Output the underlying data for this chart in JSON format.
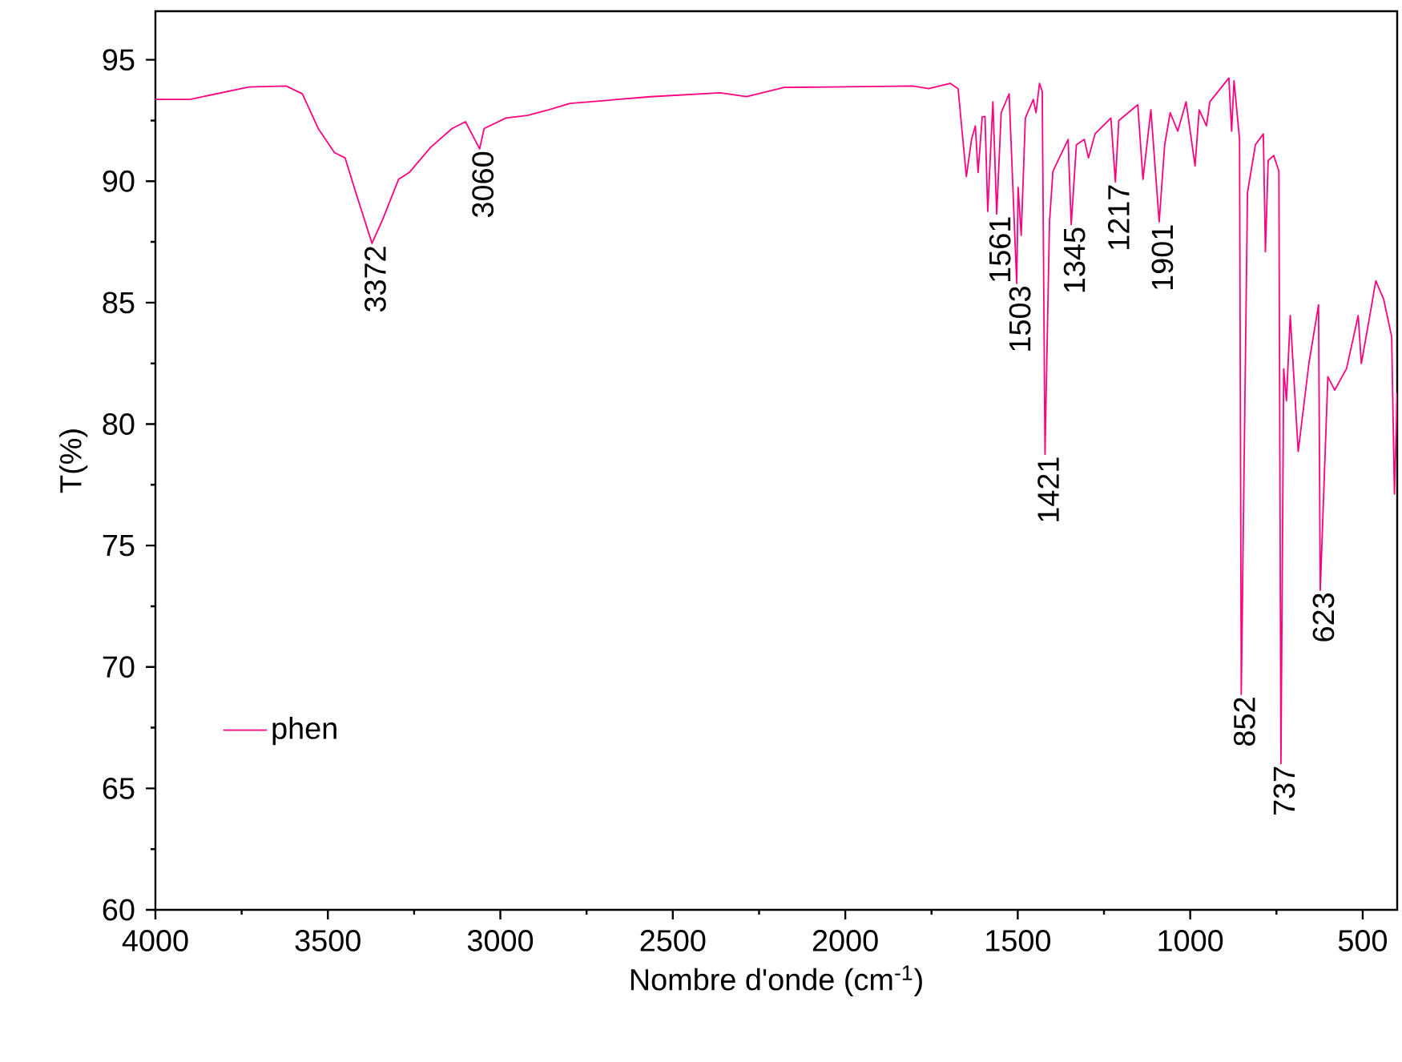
{
  "chart_data": {
    "type": "line",
    "xlabel": "Nombre d'onde (cm$^{-1}$)",
    "ylabel": "T(%)",
    "xlim": [
      4000,
      400
    ],
    "xticks": [
      4000,
      3500,
      3000,
      2500,
      2000,
      1500,
      1000,
      500
    ],
    "ylim": [
      60,
      97
    ],
    "yticks": [
      60,
      65,
      70,
      75,
      80,
      85,
      90,
      95
    ],
    "legend": "bottom left",
    "series": [
      {
        "name": "phen",
        "color": "#ff0080",
        "x": [
          4000,
          3900,
          3729,
          3621,
          3574,
          3528,
          3481,
          3450,
          3419,
          3372,
          3341,
          3295,
          3264,
          3202,
          3140,
          3101,
          3060,
          3047,
          2984,
          2922,
          2860,
          2798,
          2565,
          2363,
          2286,
          2177,
          1804,
          1758,
          1696,
          1673,
          1649,
          1634,
          1623,
          1615,
          1603,
          1595,
          1587,
          1572,
          1561,
          1548,
          1525,
          1503,
          1499,
          1490,
          1478,
          1455,
          1447,
          1437,
          1429,
          1421,
          1408,
          1398,
          1354,
          1345,
          1330,
          1307,
          1295,
          1276,
          1230,
          1217,
          1207,
          1152,
          1137,
          1114,
          1090,
          1074,
          1058,
          1036,
          1012,
          986,
          974,
          953,
          943,
          888,
          880,
          873,
          857,
          852,
          834,
          811,
          788,
          782,
          774,
          758,
          743,
          737,
          729,
          721,
          710,
          687,
          656,
          628,
          623,
          601,
          581,
          547,
          513,
          504,
          482,
          462,
          439,
          416,
          408,
          400
        ],
        "values": [
          93.37,
          93.37,
          93.88,
          93.92,
          93.6,
          92.17,
          91.18,
          90.96,
          89.53,
          87.44,
          88.43,
          90.08,
          90.36,
          91.4,
          92.17,
          92.45,
          91.33,
          92.17,
          92.6,
          92.71,
          92.94,
          93.2,
          93.48,
          93.64,
          93.48,
          93.86,
          93.92,
          93.81,
          94.03,
          93.81,
          90.19,
          91.72,
          92.28,
          90.36,
          92.65,
          92.67,
          88.76,
          93.27,
          88.65,
          92.82,
          93.6,
          85.79,
          89.75,
          87.77,
          92.6,
          93.37,
          92.82,
          94.03,
          93.7,
          78.76,
          88.32,
          90.41,
          91.72,
          88.21,
          91.5,
          91.72,
          90.96,
          91.95,
          92.6,
          89.97,
          92.5,
          93.15,
          90.08,
          92.94,
          88.32,
          91.5,
          92.82,
          92.06,
          93.27,
          90.63,
          92.94,
          92.28,
          93.27,
          94.25,
          92.06,
          94.14,
          91.72,
          68.87,
          89.53,
          91.5,
          91.95,
          87.1,
          90.85,
          91.06,
          90.41,
          66.02,
          82.28,
          80.96,
          84.47,
          78.87,
          82.49,
          84.91,
          73.16,
          81.95,
          81.4,
          82.28,
          84.47,
          82.49,
          84.25,
          85.9,
          85.13,
          83.6,
          77.12,
          81.29
        ]
      }
    ],
    "annotations": [
      {
        "text": "3372",
        "x": 3372,
        "y": 87.44
      },
      {
        "text": "3060",
        "x": 3060,
        "y": 91.33
      },
      {
        "text": "1561",
        "x": 1561,
        "y": 88.65
      },
      {
        "text": "1503",
        "x": 1503,
        "y": 85.79
      },
      {
        "text": "1421",
        "x": 1421,
        "y": 78.76
      },
      {
        "text": "1345",
        "x": 1345,
        "y": 88.21
      },
      {
        "text": "1217",
        "x": 1217,
        "y": 89.97
      },
      {
        "text": "1901",
        "x": 1090,
        "y": 88.32
      },
      {
        "text": "852",
        "x": 852,
        "y": 68.87
      },
      {
        "text": "737",
        "x": 737,
        "y": 66.02
      },
      {
        "text": "623",
        "x": 623,
        "y": 73.16
      }
    ]
  }
}
